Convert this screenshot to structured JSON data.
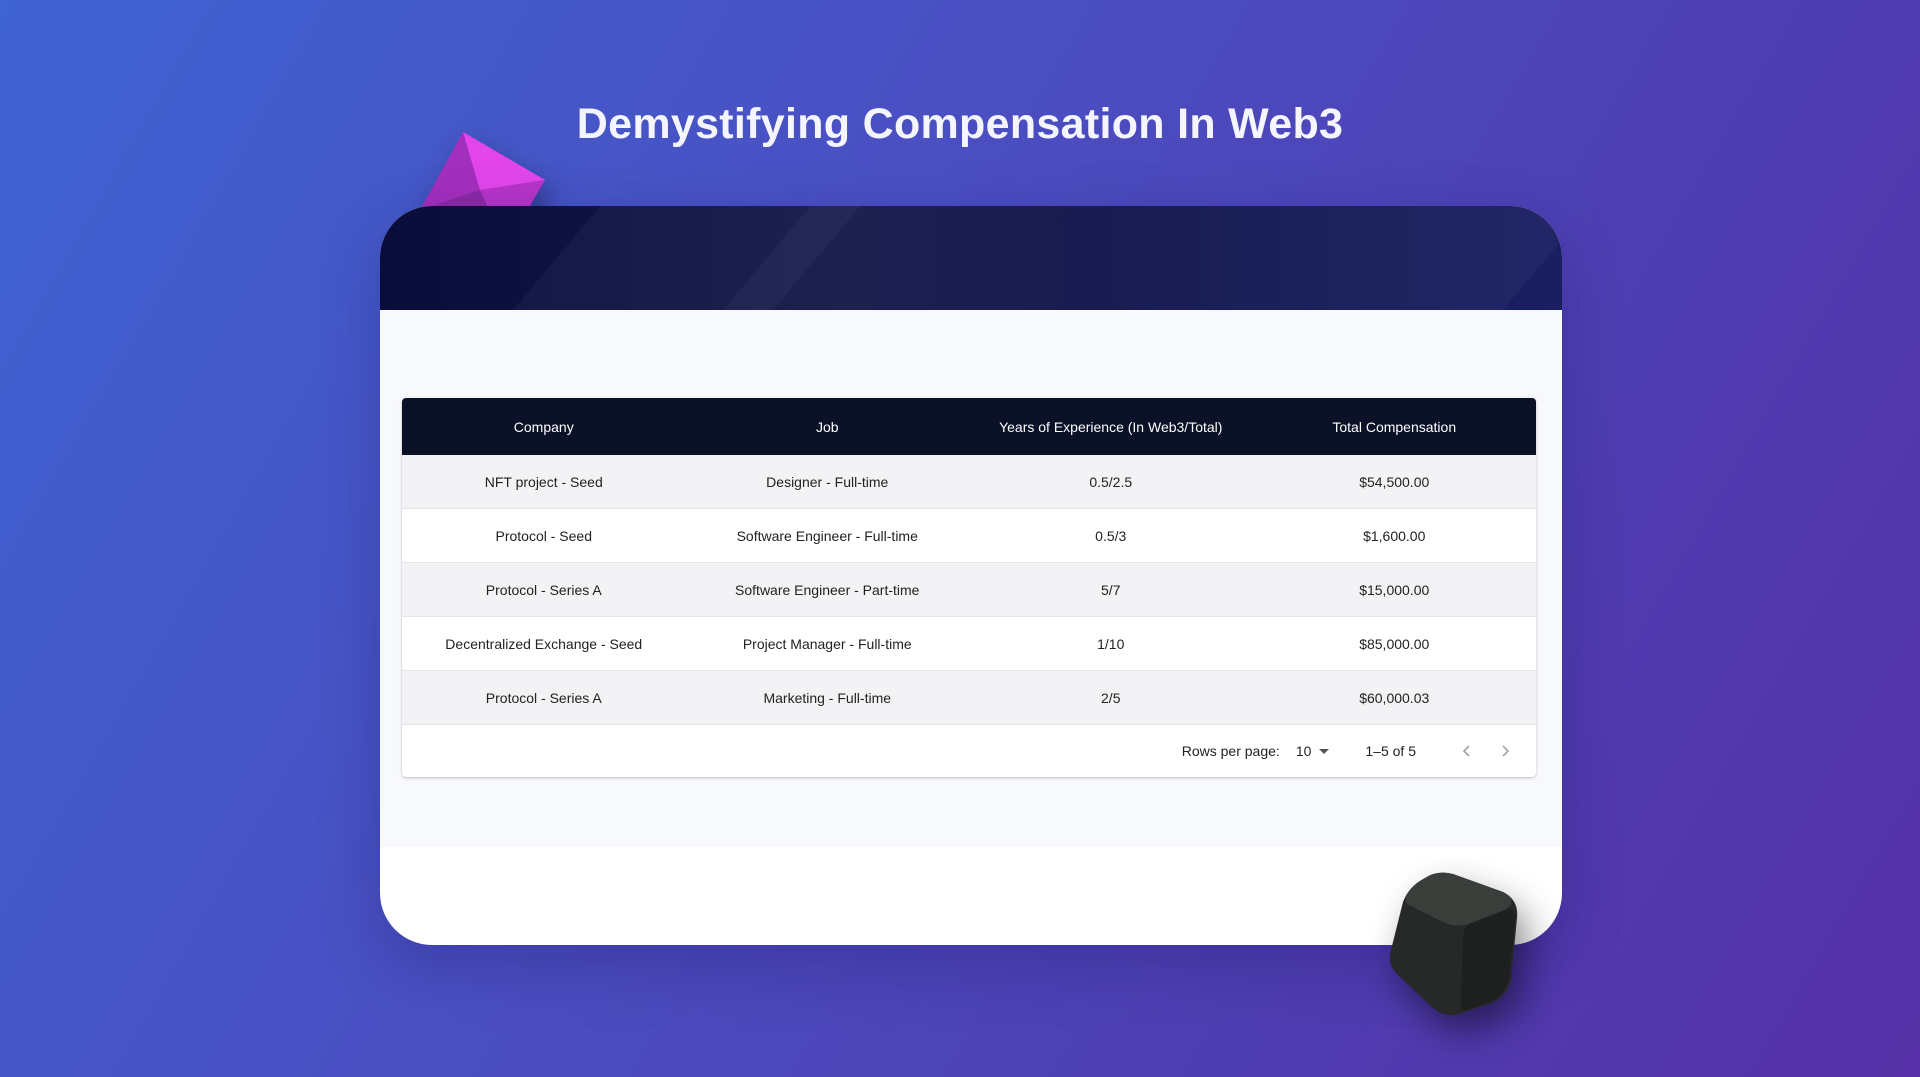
{
  "page": {
    "title": "Demystifying Compensation In Web3"
  },
  "table": {
    "columns": [
      "Company",
      "Job",
      "Years of Experience (In Web3/Total)",
      "Total Compensation"
    ],
    "rows": [
      [
        "NFT project - Seed",
        "Designer - Full-time",
        "0.5/2.5",
        "$54,500.00"
      ],
      [
        "Protocol - Seed",
        "Software Engineer - Full-time",
        "0.5/3",
        "$1,600.00"
      ],
      [
        "Protocol - Series A",
        "Software Engineer - Part-time",
        "5/7",
        "$15,000.00"
      ],
      [
        "Decentralized Exchange - Seed",
        "Project Manager - Full-time",
        "1/10",
        "$85,000.00"
      ],
      [
        "Protocol - Series A",
        "Marketing - Full-time",
        "2/5",
        "$60,000.03"
      ]
    ]
  },
  "pagination": {
    "rows_per_page_label": "Rows per page:",
    "rows_per_page_value": "10",
    "range_label": "1–5 of 5",
    "prev_icon": "chevron-left-icon",
    "next_icon": "chevron-right-icon"
  },
  "colors": {
    "header_bg": "#0b1127",
    "accent_pink": "#d63ee0",
    "cube_dark": "#2a2d2b"
  }
}
